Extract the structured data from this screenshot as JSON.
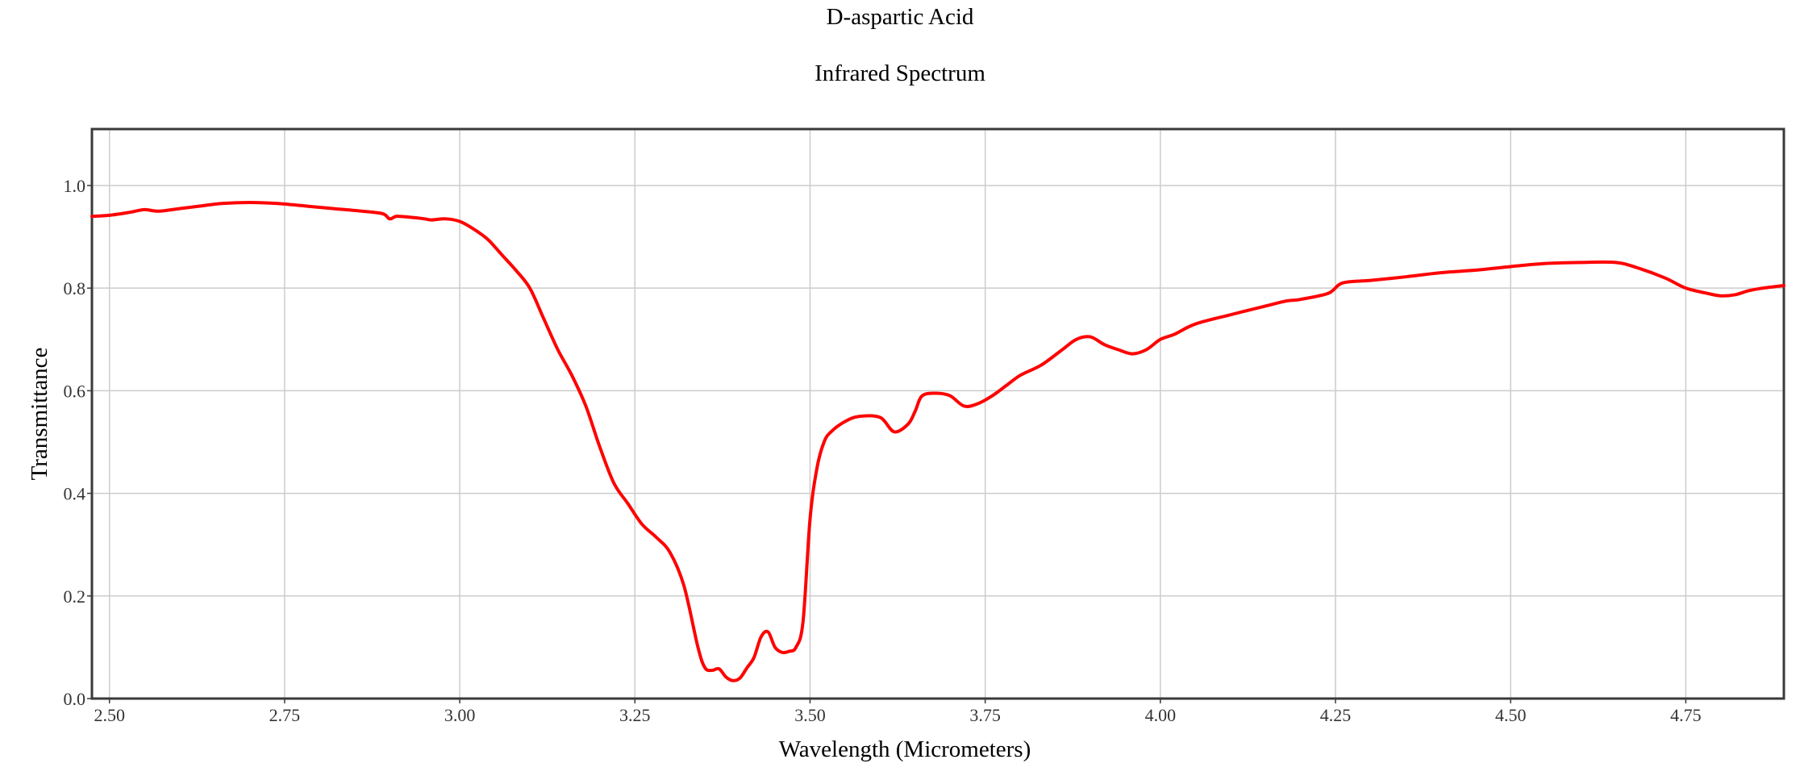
{
  "chart_data": {
    "type": "line",
    "title": "D-aspartic Acid",
    "subtitle": "Infrared Spectrum",
    "xlabel": "Wavelength (Micrometers)",
    "ylabel": "Transmittance",
    "xlim": [
      2.475,
      4.89
    ],
    "ylim": [
      0.0,
      1.11
    ],
    "grid": true,
    "legend": "none",
    "x_ticks": [
      "2.50",
      "2.75",
      "3.00",
      "3.25",
      "3.50",
      "3.75",
      "4.00",
      "4.25",
      "4.50",
      "4.75"
    ],
    "y_ticks": [
      "0.0",
      "0.2",
      "0.4",
      "0.6",
      "0.8",
      "1.0"
    ],
    "series": [
      {
        "color": "#ff0000",
        "x": [
          2.475,
          2.5,
          2.53,
          2.55,
          2.57,
          2.6,
          2.63,
          2.66,
          2.7,
          2.74,
          2.78,
          2.82,
          2.86,
          2.89,
          2.9,
          2.91,
          2.93,
          2.95,
          2.96,
          2.98,
          3.0,
          3.02,
          3.04,
          3.06,
          3.08,
          3.1,
          3.12,
          3.14,
          3.16,
          3.18,
          3.2,
          3.22,
          3.24,
          3.26,
          3.28,
          3.3,
          3.32,
          3.34,
          3.35,
          3.36,
          3.37,
          3.38,
          3.39,
          3.4,
          3.41,
          3.42,
          3.43,
          3.44,
          3.45,
          3.46,
          3.47,
          3.48,
          3.49,
          3.5,
          3.51,
          3.52,
          3.53,
          3.55,
          3.57,
          3.6,
          3.62,
          3.64,
          3.65,
          3.66,
          3.68,
          3.7,
          3.72,
          3.74,
          3.76,
          3.78,
          3.8,
          3.83,
          3.86,
          3.88,
          3.9,
          3.92,
          3.94,
          3.96,
          3.98,
          4.0,
          4.02,
          4.05,
          4.1,
          4.15,
          4.18,
          4.2,
          4.24,
          4.26,
          4.3,
          4.35,
          4.4,
          4.45,
          4.5,
          4.55,
          4.6,
          4.65,
          4.68,
          4.72,
          4.75,
          4.78,
          4.8,
          4.82,
          4.84,
          4.86,
          4.89
        ],
        "y": [
          0.94,
          0.942,
          0.948,
          0.953,
          0.95,
          0.955,
          0.96,
          0.965,
          0.967,
          0.965,
          0.96,
          0.955,
          0.95,
          0.945,
          0.935,
          0.94,
          0.938,
          0.935,
          0.933,
          0.935,
          0.93,
          0.915,
          0.895,
          0.865,
          0.835,
          0.8,
          0.74,
          0.68,
          0.63,
          0.57,
          0.49,
          0.42,
          0.38,
          0.34,
          0.315,
          0.285,
          0.22,
          0.1,
          0.06,
          0.055,
          0.058,
          0.042,
          0.035,
          0.04,
          0.06,
          0.08,
          0.12,
          0.13,
          0.1,
          0.09,
          0.092,
          0.1,
          0.15,
          0.35,
          0.45,
          0.5,
          0.52,
          0.54,
          0.55,
          0.548,
          0.52,
          0.535,
          0.56,
          0.59,
          0.595,
          0.59,
          0.57,
          0.575,
          0.59,
          0.61,
          0.63,
          0.65,
          0.68,
          0.7,
          0.705,
          0.69,
          0.68,
          0.672,
          0.68,
          0.7,
          0.71,
          0.73,
          0.748,
          0.765,
          0.775,
          0.778,
          0.79,
          0.81,
          0.815,
          0.822,
          0.83,
          0.835,
          0.842,
          0.848,
          0.85,
          0.85,
          0.84,
          0.82,
          0.8,
          0.79,
          0.785,
          0.787,
          0.795,
          0.8,
          0.805
        ]
      }
    ]
  }
}
